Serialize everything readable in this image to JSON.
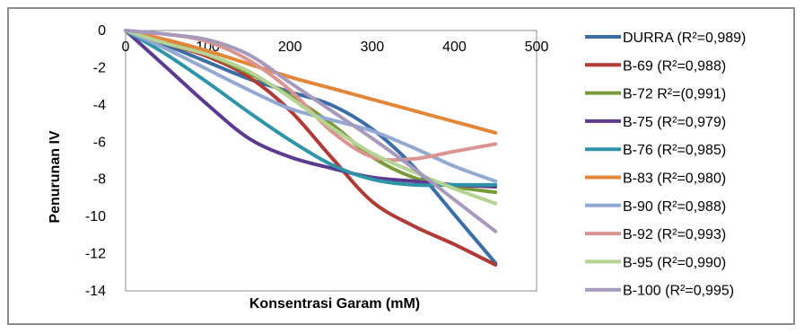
{
  "chart_data": {
    "type": "line",
    "title": "",
    "xlabel": "Konsentrasi Garam (mM)",
    "ylabel": "Penurunan IV",
    "xlim": [
      0,
      500
    ],
    "ylim": [
      -14,
      0
    ],
    "xticks": [
      0,
      100,
      200,
      300,
      400,
      500
    ],
    "yticks": [
      0,
      -2,
      -4,
      -6,
      -8,
      -10,
      -12,
      -14
    ],
    "x_axis_position": "top (at y=0)",
    "grid": false,
    "legend_position": "right",
    "series": [
      {
        "name": "DURRA (R²=0,989)",
        "color": "#3a6ea5",
        "x": [
          0,
          50,
          100,
          150,
          200,
          250,
          300,
          350,
          400,
          450
        ],
        "y": [
          0,
          -0.8,
          -1.7,
          -2.6,
          -3.3,
          -4.0,
          -5.3,
          -7.3,
          -9.9,
          -12.5
        ]
      },
      {
        "name": "B-69 (R²=0,988)",
        "color": "#b03a35",
        "x": [
          0,
          50,
          100,
          150,
          200,
          250,
          300,
          350,
          400,
          450
        ],
        "y": [
          0,
          -0.7,
          -1.4,
          -2.5,
          -4.3,
          -6.8,
          -9.2,
          -10.5,
          -11.5,
          -12.6
        ]
      },
      {
        "name": "B-72 R²=(0,991)",
        "color": "#7a9a3a",
        "x": [
          0,
          50,
          100,
          150,
          200,
          250,
          300,
          350,
          400,
          450
        ],
        "y": [
          0,
          -0.6,
          -1.3,
          -2.3,
          -3.5,
          -5.0,
          -6.8,
          -7.9,
          -8.4,
          -8.7
        ]
      },
      {
        "name": "B-75 (R²=0,979)",
        "color": "#5c3a8e",
        "x": [
          0,
          50,
          100,
          150,
          200,
          250,
          300,
          350,
          400,
          450
        ],
        "y": [
          0,
          -2.0,
          -4.0,
          -5.8,
          -6.8,
          -7.4,
          -7.9,
          -8.1,
          -8.3,
          -8.4
        ]
      },
      {
        "name": "B-76 (R²=0,985)",
        "color": "#2e94a8",
        "x": [
          0,
          50,
          100,
          150,
          200,
          250,
          300,
          350,
          400,
          450
        ],
        "y": [
          0,
          -1.3,
          -2.8,
          -4.4,
          -5.9,
          -7.2,
          -8.0,
          -8.3,
          -8.3,
          -8.3
        ]
      },
      {
        "name": "B-83 (R²=0,980)",
        "color": "#e2873a",
        "x": [
          0,
          50,
          100,
          150,
          200,
          250,
          300,
          350,
          400,
          450
        ],
        "y": [
          0,
          -0.5,
          -1.1,
          -1.8,
          -2.5,
          -3.1,
          -3.7,
          -4.3,
          -4.9,
          -5.5
        ]
      },
      {
        "name": "B-90 (R²=0,988)",
        "color": "#93a9d2",
        "x": [
          0,
          50,
          100,
          150,
          200,
          250,
          300,
          350,
          400,
          450
        ],
        "y": [
          0,
          -1.0,
          -2.1,
          -3.2,
          -4.2,
          -4.8,
          -5.4,
          -6.3,
          -7.3,
          -8.1
        ]
      },
      {
        "name": "B-92 (R²=0,993)",
        "color": "#d99592",
        "x": [
          0,
          50,
          100,
          150,
          200,
          250,
          300,
          350,
          400,
          450
        ],
        "y": [
          0,
          -0.2,
          -0.6,
          -1.6,
          -3.2,
          -5.4,
          -6.8,
          -6.9,
          -6.5,
          -6.1
        ]
      },
      {
        "name": "B-95 (R²=0,990)",
        "color": "#b5d392",
        "x": [
          0,
          50,
          100,
          150,
          200,
          250,
          300,
          350,
          400,
          450
        ],
        "y": [
          0,
          -0.7,
          -1.3,
          -2.2,
          -3.6,
          -5.2,
          -6.6,
          -7.6,
          -8.5,
          -9.3
        ]
      },
      {
        "name": "B-100 (R²=0,995)",
        "color": "#a699bb",
        "x": [
          0,
          50,
          100,
          150,
          200,
          250,
          300,
          350,
          400,
          450
        ],
        "y": [
          0,
          -0.2,
          -0.5,
          -1.3,
          -2.8,
          -4.3,
          -5.8,
          -7.4,
          -9.1,
          -10.8
        ]
      }
    ]
  }
}
